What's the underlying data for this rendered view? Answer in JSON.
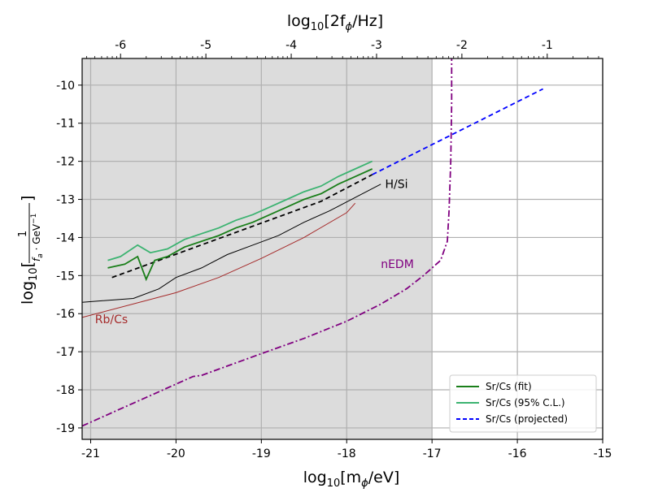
{
  "chart_data": {
    "type": "line",
    "xlabel_main": "log",
    "xlabel_sub": "10",
    "xlabel_rest": "[m",
    "xlabel_subphi": "ϕ",
    "xlabel_end": "/eV]",
    "top_xlabel_main": "log",
    "top_xlabel_sub": "10",
    "top_xlabel_rest": "[2f",
    "top_xlabel_subphi": "ϕ",
    "top_xlabel_end": "/Hz]",
    "ylabel_main": "log",
    "ylabel_sub": "10",
    "ylabel_frac_num": "1",
    "ylabel_frac_den": "f",
    "ylabel_frac_den_sub": "a",
    "ylabel_frac_den_rest": " · GeV",
    "ylabel_frac_den_sup": "−1",
    "xlim": [
      -21.1,
      -15
    ],
    "ylim": [
      -19.3,
      -9.3
    ],
    "top_xlim": [
      -6.45,
      -0.35
    ],
    "x_ticks": [
      {
        "v": -21,
        "label": "-21"
      },
      {
        "v": -20,
        "label": "-20"
      },
      {
        "v": -19,
        "label": "-19"
      },
      {
        "v": -18,
        "label": "-18"
      },
      {
        "v": -17,
        "label": "-17"
      },
      {
        "v": -16,
        "label": "-16"
      },
      {
        "v": -15,
        "label": "-15"
      }
    ],
    "y_ticks": [
      {
        "v": -19,
        "label": "-19"
      },
      {
        "v": -18,
        "label": "-18"
      },
      {
        "v": -17,
        "label": "-17"
      },
      {
        "v": -16,
        "label": "-16"
      },
      {
        "v": -15,
        "label": "-15"
      },
      {
        "v": -14,
        "label": "-14"
      },
      {
        "v": -13,
        "label": "-13"
      },
      {
        "v": -12,
        "label": "-12"
      },
      {
        "v": -11,
        "label": "-11"
      },
      {
        "v": -10,
        "label": "-10"
      }
    ],
    "top_ticks": [
      {
        "v": -6,
        "label": "-6"
      },
      {
        "v": -5,
        "label": "-5"
      },
      {
        "v": -4,
        "label": "-4"
      },
      {
        "v": -3,
        "label": "-3"
      },
      {
        "v": -2,
        "label": "-2"
      },
      {
        "v": -1,
        "label": "-1"
      }
    ],
    "grid": true,
    "excluded_region_color": "#dcdcdc",
    "excluded_region_x_max": -17.0,
    "annotations": [
      {
        "text": "H/Si",
        "x": -17.55,
        "y": -12.7,
        "color": "#000000"
      },
      {
        "text": "nEDM",
        "x": -17.6,
        "y": -14.8,
        "color": "#800080"
      },
      {
        "text": "Rb/Cs",
        "x": -20.95,
        "y": -16.25,
        "color": "#a52a2a"
      }
    ],
    "legend_position": "lower-right",
    "legend": [
      {
        "label": "Sr/Cs (fit)",
        "color": "#1a7f1a",
        "style": "solid"
      },
      {
        "label": "Sr/Cs (95% C.L.)",
        "color": "#3cb371",
        "style": "solid"
      },
      {
        "label": "Sr/Cs (projected)",
        "color": "#0000ff",
        "style": "dashed"
      }
    ],
    "series": [
      {
        "name": "nEDM",
        "color": "#800080",
        "style": "dashdot",
        "x": [
          -21.1,
          -20.5,
          -20.0,
          -19.8,
          -19.7,
          -19.0,
          -18.5,
          -18.0,
          -17.6,
          -17.3,
          -17.1,
          -16.9,
          -16.82,
          -16.8,
          -16.78,
          -16.77,
          -16.77
        ],
        "y": [
          -18.95,
          -18.35,
          -17.85,
          -17.65,
          -17.62,
          -17.05,
          -16.65,
          -16.2,
          -15.75,
          -15.35,
          -15.0,
          -14.6,
          -14.1,
          -13.3,
          -12.0,
          -10.5,
          -9.3
        ]
      },
      {
        "name": "Rb/Cs",
        "color": "#a52a2a",
        "style": "solid",
        "x": [
          -21.1,
          -20.0,
          -19.5,
          -19.0,
          -18.5,
          -18.0,
          -17.9
        ],
        "y": [
          -16.1,
          -15.45,
          -15.05,
          -14.55,
          -14.0,
          -13.35,
          -13.1
        ]
      },
      {
        "name": "H/Si",
        "color": "#000000",
        "style": "solid",
        "x": [
          -21.1,
          -20.5,
          -20.2,
          -20.0,
          -19.7,
          -19.4,
          -19.1,
          -18.8,
          -18.5,
          -18.2,
          -17.9,
          -17.6
        ],
        "y": [
          -15.7,
          -15.6,
          -15.35,
          -15.05,
          -14.8,
          -14.45,
          -14.2,
          -13.95,
          -13.6,
          -13.3,
          -12.95,
          -12.6
        ]
      },
      {
        "name": "Sr/Cs (projected)",
        "color": "#0000ff",
        "style": "dashed",
        "x": [
          -17.7,
          -15.7
        ],
        "y": [
          -12.35,
          -10.1
        ]
      },
      {
        "name": "Sr/Cs trend",
        "color": "#000000",
        "style": "dashed",
        "x": [
          -20.75,
          -18.3,
          -17.7
        ],
        "y": [
          -15.05,
          -13.05,
          -12.35
        ]
      },
      {
        "name": "Sr/Cs (95% C.L.)",
        "color": "#3cb371",
        "style": "solid",
        "x": [
          -20.8,
          -20.65,
          -20.45,
          -20.3,
          -20.1,
          -19.9,
          -19.7,
          -19.5,
          -19.3,
          -19.1,
          -18.9,
          -18.7,
          -18.5,
          -18.3,
          -18.1,
          -17.9,
          -17.7
        ],
        "y": [
          -14.6,
          -14.5,
          -14.2,
          -14.4,
          -14.3,
          -14.05,
          -13.9,
          -13.75,
          -13.55,
          -13.4,
          -13.2,
          -13.0,
          -12.8,
          -12.65,
          -12.4,
          -12.2,
          -12.0
        ]
      },
      {
        "name": "Sr/Cs (fit)",
        "color": "#1a7f1a",
        "style": "solid",
        "x": [
          -20.8,
          -20.6,
          -20.45,
          -20.35,
          -20.25,
          -20.1,
          -19.9,
          -19.7,
          -19.5,
          -19.3,
          -19.1,
          -18.9,
          -18.7,
          -18.5,
          -18.3,
          -18.1,
          -17.9,
          -17.7
        ],
        "y": [
          -14.8,
          -14.7,
          -14.5,
          -15.1,
          -14.6,
          -14.5,
          -14.25,
          -14.1,
          -13.95,
          -13.75,
          -13.6,
          -13.4,
          -13.2,
          -13.0,
          -12.85,
          -12.6,
          -12.4,
          -12.2
        ]
      }
    ]
  }
}
